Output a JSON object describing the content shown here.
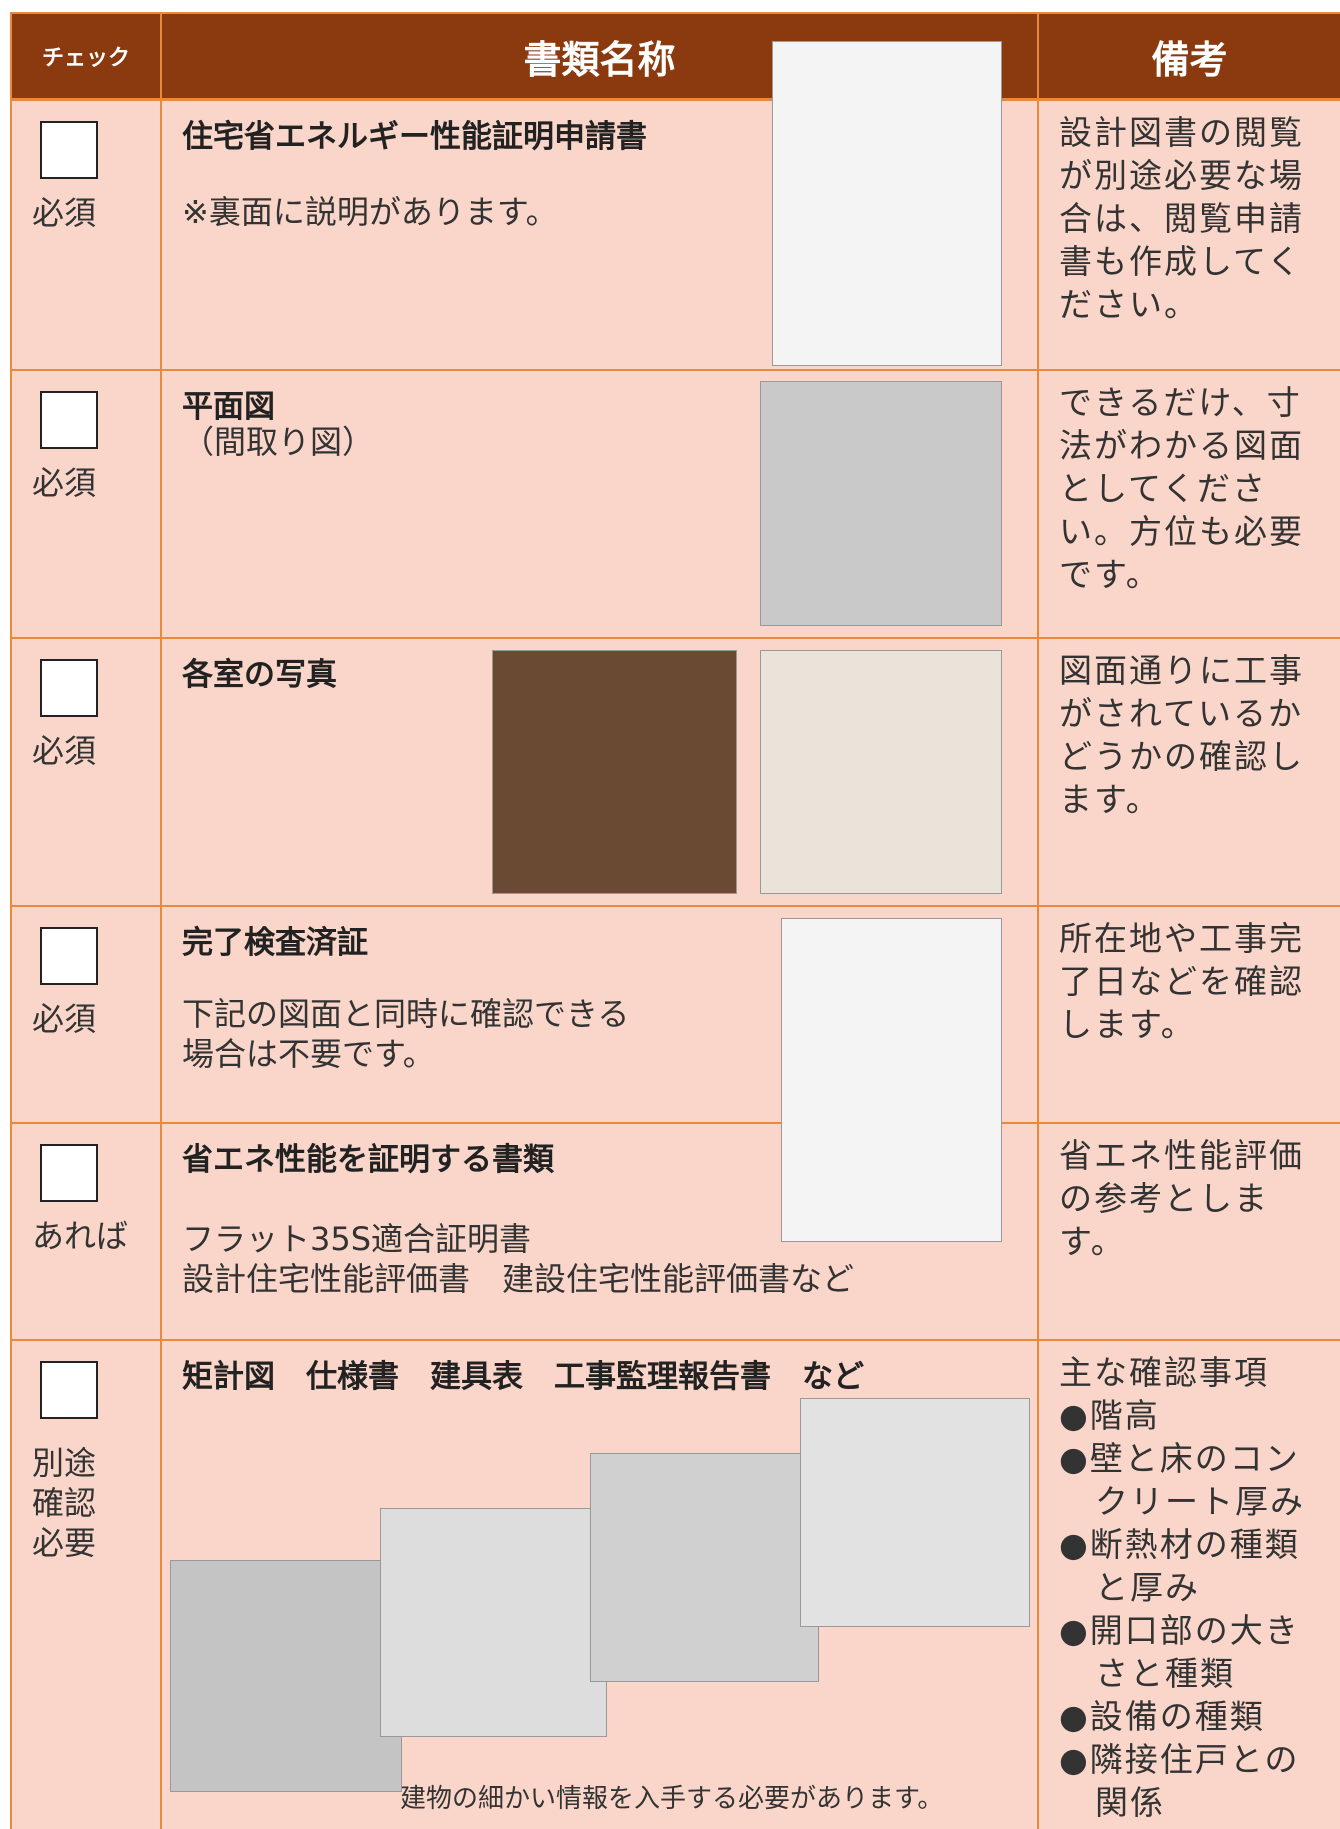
{
  "table": {
    "headers": [
      "チェック",
      "書類名称",
      "備考"
    ],
    "rows": [
      {
        "status": "必須",
        "title": "住宅省エネルギー性能証明申請書",
        "description": [
          "※裏面に説明があります。"
        ],
        "note": "設計図書の閲覧が別途必要な場合は、閲覧申請書も作成してください。"
      },
      {
        "status": "必須",
        "title": "平面図",
        "description": [
          "（間取り図）"
        ],
        "note": "できるだけ、寸法がわかる図面としてください。方位も必要です。"
      },
      {
        "status": "必須",
        "title": "各室の写真",
        "description": [],
        "note": "図面通りに工事がされているかどうかの確認します。"
      },
      {
        "status": "必須",
        "title": "完了検査済証",
        "description": [
          "下記の図面と同時に確認できる",
          "場合は不要です。"
        ],
        "note": "所在地や工事完了日などを確認します。"
      },
      {
        "status": "あれば",
        "title": "省エネ性能を証明する書類",
        "description": [
          "フラット35S適合証明書",
          "設計住宅性能評価書　建設住宅性能評価書など"
        ],
        "note": "省エネ性能評価の参考とします。"
      },
      {
        "status": "別途確認必要",
        "title": "矩計図　仕様書　建具表　工事監理報告書　など",
        "description": [],
        "caption": "建物の細かい情報を入手する必要があります。",
        "note": "主な確認事項",
        "note_items": [
          "●階高",
          "●壁と床のコンクリート厚み",
          "●断熱材の種類と厚み",
          "●開口部の大きさと種類",
          "●設備の種類",
          "●隣接住戸との関係"
        ]
      }
    ]
  }
}
